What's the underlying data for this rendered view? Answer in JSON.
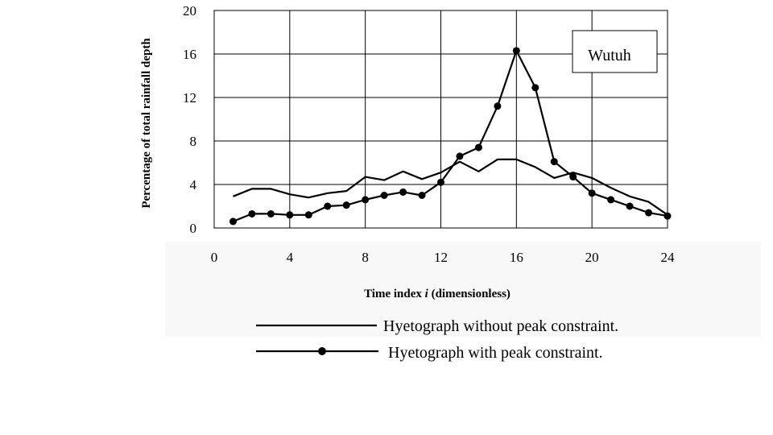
{
  "chart_data": {
    "type": "line",
    "title": "",
    "xlabel_prefix": "Time index ",
    "xlabel_var": "i",
    "xlabel_suffix": " (dimensionless)",
    "ylabel": "Percentage of total rainfall depth",
    "xlim": [
      0,
      24
    ],
    "ylim": [
      0,
      20
    ],
    "xticks": [
      0,
      4,
      8,
      12,
      16,
      20,
      24
    ],
    "yticks": [
      0,
      4,
      8,
      12,
      16,
      20
    ],
    "grid": true,
    "annotation": "Wutuh",
    "legend_position": "bottom",
    "series": [
      {
        "name": "Hyetograph without peak constraint.",
        "marker": "none",
        "color": "#000000",
        "x": [
          1,
          2,
          3,
          4,
          5,
          6,
          7,
          8,
          9,
          10,
          11,
          12,
          13,
          14,
          15,
          16,
          17,
          18,
          19,
          20,
          21,
          22,
          23,
          24
        ],
        "values": [
          2.9,
          3.6,
          3.6,
          3.1,
          2.8,
          3.2,
          3.4,
          4.7,
          4.4,
          5.2,
          4.5,
          5.1,
          6.1,
          5.2,
          6.3,
          6.3,
          5.6,
          4.6,
          5.1,
          4.6,
          3.7,
          2.9,
          2.4,
          1.2
        ]
      },
      {
        "name": "Hyetograph with peak constraint.",
        "marker": "circle",
        "color": "#000000",
        "x": [
          1,
          2,
          3,
          4,
          5,
          6,
          7,
          8,
          9,
          10,
          11,
          12,
          13,
          14,
          15,
          16,
          17,
          18,
          19,
          20,
          21,
          22,
          23,
          24
        ],
        "values": [
          0.6,
          1.3,
          1.3,
          1.2,
          1.2,
          2.0,
          2.1,
          2.6,
          3.0,
          3.3,
          3.0,
          4.2,
          6.6,
          7.4,
          11.2,
          16.3,
          12.9,
          6.1,
          4.7,
          3.2,
          2.6,
          2.0,
          1.4,
          1.1
        ]
      }
    ]
  }
}
